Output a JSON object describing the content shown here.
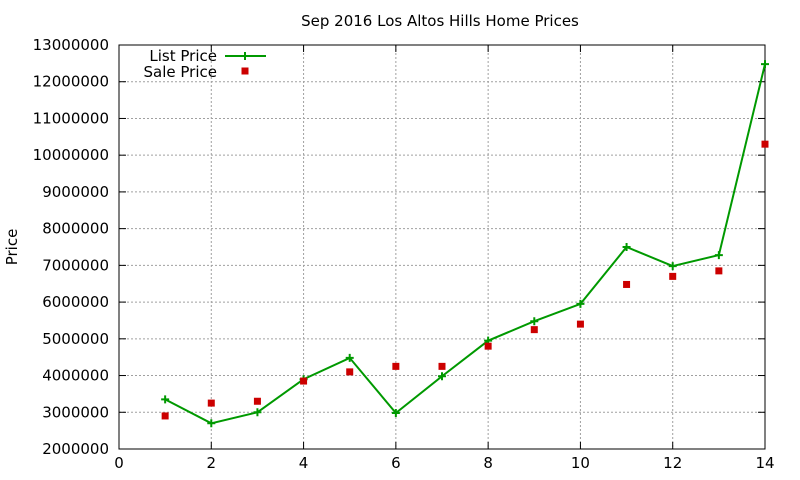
{
  "chart_data": {
    "type": "line",
    "title": "Sep 2016 Los Altos Hills Home Prices",
    "xlabel": "",
    "ylabel": "Price",
    "xlim": [
      0,
      14
    ],
    "ylim": [
      2000000,
      13000000
    ],
    "x_ticks": [
      0,
      2,
      4,
      6,
      8,
      10,
      12,
      14
    ],
    "y_ticks": [
      2000000,
      3000000,
      4000000,
      5000000,
      6000000,
      7000000,
      8000000,
      9000000,
      10000000,
      11000000,
      12000000,
      13000000
    ],
    "grid": true,
    "legend_position": "top-left",
    "series": [
      {
        "name": "List Price",
        "style": "linespoints",
        "marker": "plus",
        "color": "#009900",
        "x": [
          1,
          2,
          3,
          4,
          5,
          6,
          7,
          8,
          9,
          10,
          11,
          12,
          13,
          14
        ],
        "values": [
          3350000,
          2700000,
          3000000,
          3900000,
          4480000,
          2980000,
          3980000,
          4950000,
          5480000,
          5950000,
          7500000,
          6980000,
          7280000,
          12480000
        ]
      },
      {
        "name": "Sale Price",
        "style": "points",
        "marker": "square",
        "color": "#cc0000",
        "x": [
          1,
          2,
          3,
          4,
          5,
          6,
          7,
          8,
          9,
          10,
          11,
          12,
          13,
          14
        ],
        "values": [
          2900000,
          3250000,
          3300000,
          3850000,
          4100000,
          4250000,
          4250000,
          4800000,
          5250000,
          5400000,
          6480000,
          6700000,
          6850000,
          10300000
        ]
      }
    ]
  }
}
